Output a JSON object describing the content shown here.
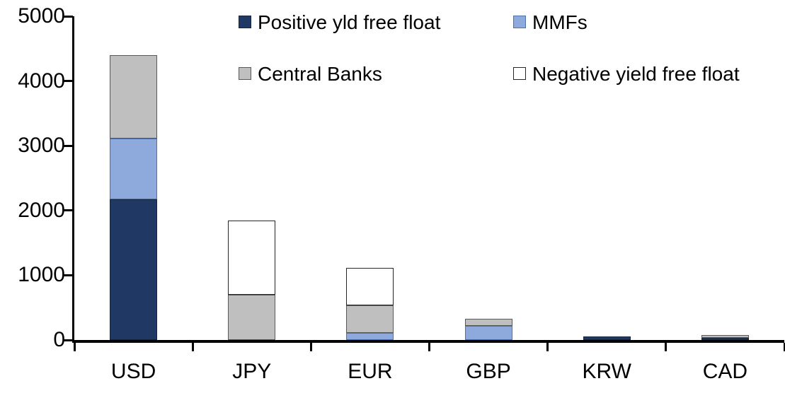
{
  "chart_data": {
    "type": "bar",
    "stacked": true,
    "title": "",
    "xlabel": "",
    "ylabel": "",
    "categories": [
      "USD",
      "JPY",
      "EUR",
      "GBP",
      "KRW",
      "CAD"
    ],
    "series": [
      {
        "name": "Positive yld free float",
        "color": "#1f3864",
        "border": "#16253f",
        "values": [
          2170,
          0,
          0,
          0,
          50,
          30
        ]
      },
      {
        "name": "MMFs",
        "color": "#8eaadc",
        "border": "#4a72ad",
        "values": [
          945,
          0,
          105,
          215,
          0,
          0
        ]
      },
      {
        "name": "Central Banks",
        "color": "#bfbfbf",
        "border": "#595959",
        "values": [
          1285,
          700,
          435,
          115,
          0,
          45
        ]
      },
      {
        "name": "Negative yield free float",
        "color": "#ffffff",
        "border": "#262626",
        "values": [
          0,
          1150,
          570,
          0,
          0,
          0
        ]
      }
    ],
    "totals": [
      4400,
      1850,
      1110,
      330,
      50,
      75
    ],
    "ylim": [
      0,
      5000
    ],
    "yticks": [
      0,
      1000,
      2000,
      3000,
      4000,
      5000
    ],
    "ytick_labels": [
      "0",
      "1000",
      "2000",
      "3000",
      "4000",
      "5000"
    ],
    "grid": false,
    "legend_position": "top",
    "legend_rows": [
      [
        0,
        1
      ],
      [
        2,
        3
      ]
    ],
    "axis_color": "#000000",
    "text_color": "#000000"
  }
}
